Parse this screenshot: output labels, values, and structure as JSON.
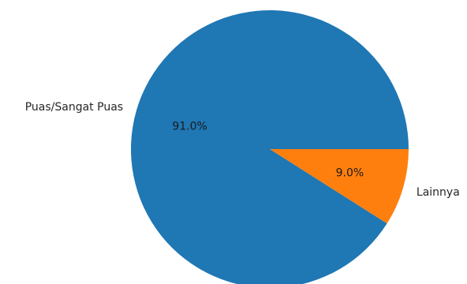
{
  "chart_data": {
    "type": "pie",
    "title": "",
    "slices": [
      {
        "label": "Puas/Sangat Puas",
        "value": 91.0,
        "pct_label": "91.0%",
        "color": "#1f77b4"
      },
      {
        "label": "Lainnya",
        "value": 9.0,
        "pct_label": "9.0%",
        "color": "#ff7f0e"
      }
    ],
    "start_angle_deg": 0,
    "direction": "counterclockwise",
    "autopct": true
  }
}
